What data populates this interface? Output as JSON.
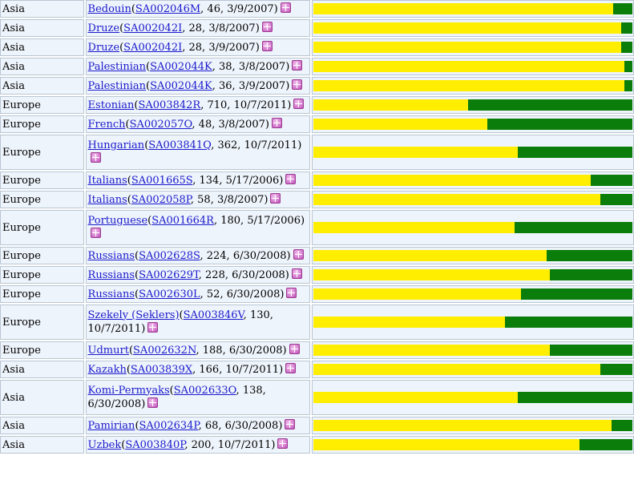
{
  "colors": {
    "yellow": "#ffee00",
    "green": "#0a7d0a",
    "link": "#1a1acc"
  },
  "rows": [
    {
      "region": "Asia",
      "population": "Bedouin",
      "sample": "SA002046M",
      "n": "46",
      "date": "3/9/2007",
      "frac": 0.94
    },
    {
      "region": "Asia",
      "population": "Druze",
      "sample": "SA002042I",
      "n": "28",
      "date": "3/8/2007",
      "frac": 0.965
    },
    {
      "region": "Asia",
      "population": "Druze",
      "sample": "SA002042I",
      "n": "28",
      "date": "3/9/2007",
      "frac": 0.965
    },
    {
      "region": "Asia",
      "population": "Palestinian",
      "sample": "SA002044K",
      "n": "38",
      "date": "3/8/2007",
      "frac": 0.975
    },
    {
      "region": "Asia",
      "population": "Palestinian",
      "sample": "SA002044K",
      "n": "36",
      "date": "3/9/2007",
      "frac": 0.975
    },
    {
      "region": "Europe",
      "population": "Estonian",
      "sample": "SA003842R",
      "n": "710",
      "date": "10/7/2011",
      "frac": 0.485
    },
    {
      "region": "Europe",
      "population": "French",
      "sample": "SA002057O",
      "n": "48",
      "date": "3/8/2007",
      "frac": 0.545
    },
    {
      "region": "Europe",
      "population": "Hungarian",
      "sample": "SA003841Q",
      "n": "362",
      "date": "10/7/2011",
      "frac": 0.64
    },
    {
      "region": "Europe",
      "population": "Italians",
      "sample": "SA001665S",
      "n": "134",
      "date": "5/17/2006",
      "frac": 0.87
    },
    {
      "region": "Europe",
      "population": "Italians",
      "sample": "SA002058P",
      "n": "58",
      "date": "3/8/2007",
      "frac": 0.9
    },
    {
      "region": "Europe",
      "population": "Portuguese",
      "sample": "SA001664R",
      "n": "180",
      "date": "5/17/2006",
      "frac": 0.63
    },
    {
      "region": "Europe",
      "population": "Russians",
      "sample": "SA002628S",
      "n": "224",
      "date": "6/30/2008",
      "frac": 0.73
    },
    {
      "region": "Europe",
      "population": "Russians",
      "sample": "SA002629T",
      "n": "228",
      "date": "6/30/2008",
      "frac": 0.74
    },
    {
      "region": "Europe",
      "population": "Russians",
      "sample": "SA002630L",
      "n": "52",
      "date": "6/30/2008",
      "frac": 0.65
    },
    {
      "region": "Europe",
      "population": "Szekely (Seklers)",
      "sample": "SA003846V",
      "n": "130",
      "date": "10/7/2011",
      "frac": 0.6
    },
    {
      "region": "Europe",
      "population": "Udmurt",
      "sample": "SA002632N",
      "n": "188",
      "date": "6/30/2008",
      "frac": 0.74
    },
    {
      "region": "Asia",
      "population": "Kazakh",
      "sample": "SA003839X",
      "n": "166",
      "date": "10/7/2011",
      "frac": 0.9
    },
    {
      "region": "Asia",
      "population": "Komi-Permyaks",
      "sample": "SA002633O",
      "n": "138",
      "date": "6/30/2008",
      "frac": 0.64
    },
    {
      "region": "Asia",
      "population": "Pamirian",
      "sample": "SA002634P",
      "n": "68",
      "date": "6/30/2008",
      "frac": 0.935
    },
    {
      "region": "Asia",
      "population": "Uzbek",
      "sample": "SA003840P",
      "n": "200",
      "date": "10/7/2011",
      "frac": 0.835
    }
  ]
}
